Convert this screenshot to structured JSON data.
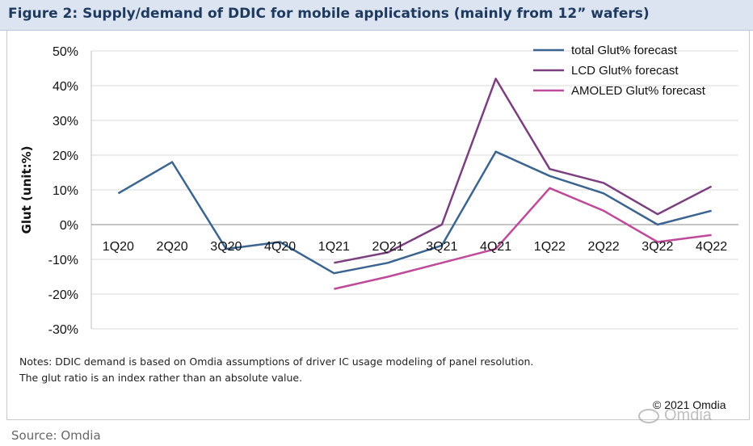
{
  "header": {
    "title": "Figure 2: Supply/demand of DDIC for mobile applications (mainly from 12” wafers)"
  },
  "notes": [
    "Notes: DDIC demand is based on Omdia assumptions of driver IC usage modeling of panel resolution.",
    "The glut ratio is an index rather than an absolute value."
  ],
  "copyright": "© 2021 Omdia",
  "watermark": "Omdia",
  "source": "Source: Omdia",
  "colors": {
    "total": "#3b6590",
    "lcd": "#7b3f7f",
    "amoled": "#c04a9a",
    "grid": "#d9d9d9"
  },
  "chart_data": {
    "type": "line",
    "title": "",
    "xlabel": "",
    "ylabel": "Glut (unit:%)",
    "ylim": [
      -30,
      50
    ],
    "yticks": [
      "50%",
      "40%",
      "30%",
      "20%",
      "10%",
      "0%",
      "-10%",
      "-20%",
      "-30%"
    ],
    "ytick_values": [
      50,
      40,
      30,
      20,
      10,
      0,
      -10,
      -20,
      -30
    ],
    "categories": [
      "1Q20",
      "2Q20",
      "3Q20",
      "4Q20",
      "1Q21",
      "2Q21",
      "3Q21",
      "4Q21",
      "1Q22",
      "2Q22",
      "3Q22",
      "4Q22"
    ],
    "grid": true,
    "legend_position": "top-right",
    "series": [
      {
        "name": "total  Glut% forecast",
        "values": [
          9,
          18,
          -7,
          -5,
          -14,
          -11,
          -6,
          21,
          14,
          9,
          0,
          4
        ]
      },
      {
        "name": "LCD Glut% forecast",
        "values": [
          null,
          null,
          null,
          null,
          -11,
          -8,
          0,
          42,
          16,
          12,
          3,
          11
        ]
      },
      {
        "name": "AMOLED Glut% forecast",
        "values": [
          null,
          null,
          null,
          null,
          -18.5,
          -15,
          -11,
          -7,
          10.5,
          4,
          -5,
          -3
        ]
      }
    ]
  }
}
